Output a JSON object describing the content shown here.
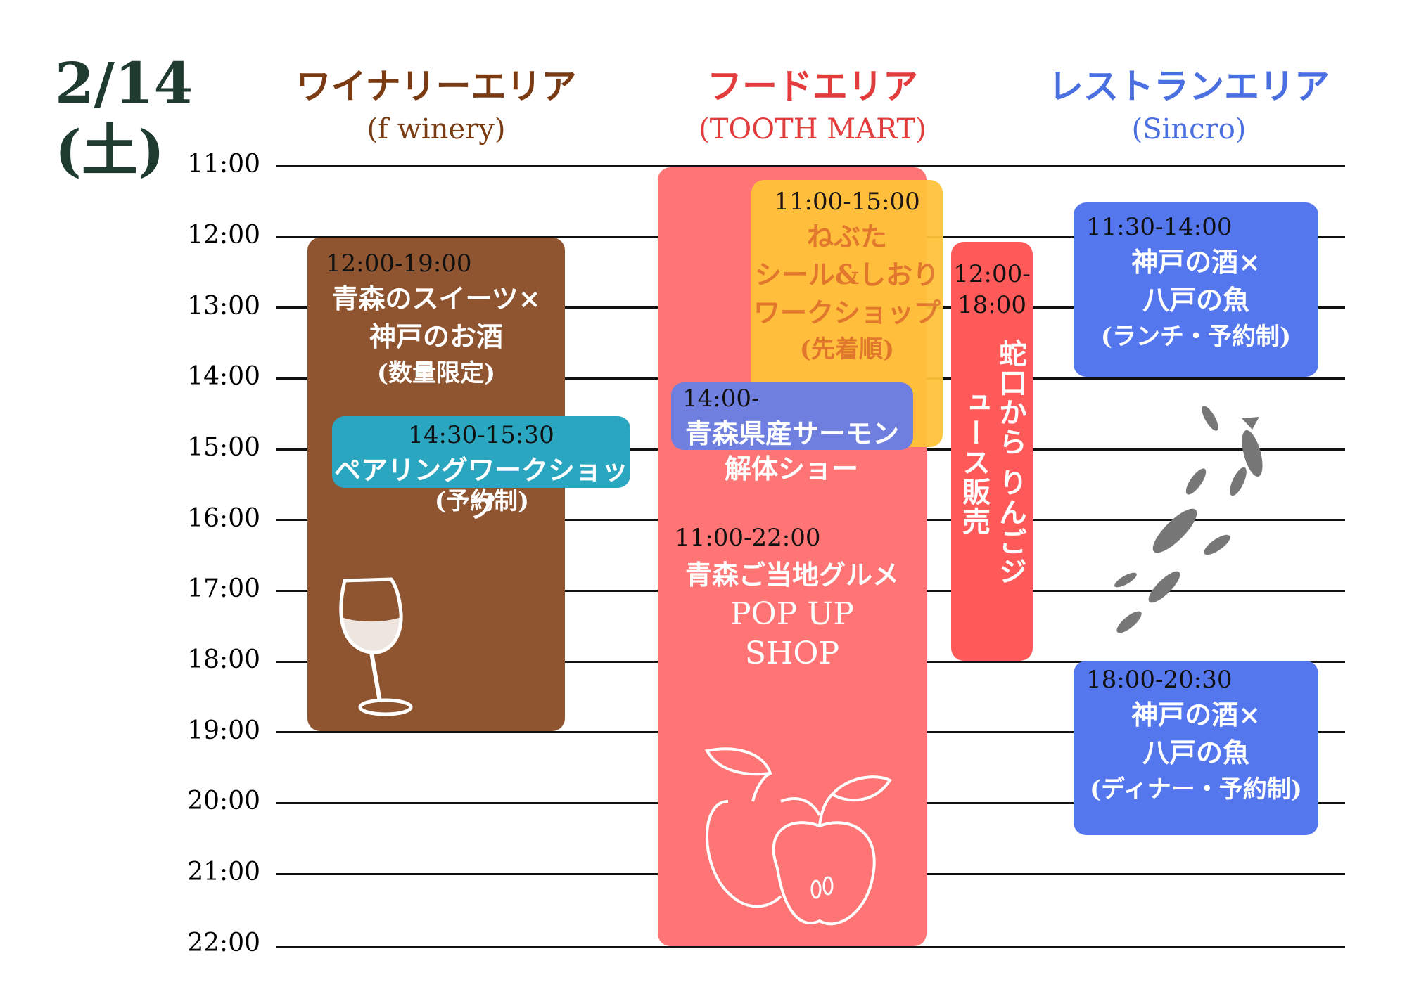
{
  "date": {
    "line1": "2/14",
    "line2": "(土)"
  },
  "areas": [
    {
      "name": "ワイナリーエリア",
      "sub": "(f winery)",
      "color": "#7a3a12"
    },
    {
      "name": "フードエリア",
      "sub": "(TOOTH MART)",
      "color": "#e23c3c"
    },
    {
      "name": "レストランエリア",
      "sub": "(Sincro)",
      "color": "#4a6fe0"
    }
  ],
  "times": [
    "11:00",
    "12:00",
    "13:00",
    "14:00",
    "15:00",
    "16:00",
    "17:00",
    "18:00",
    "19:00",
    "20:00",
    "21:00",
    "22:00"
  ],
  "events": {
    "sweets": {
      "time": "12:00-19:00",
      "line1": "青森のスイーツ×",
      "line2": "神戸のお酒",
      "note": "(数量限定)",
      "color": "#8f5530"
    },
    "pairing": {
      "time": "14:30-15:30",
      "line1": "ペアリングワークショップ",
      "note": "(予約制)",
      "color": "#2aa6c0"
    },
    "nebuta": {
      "time": "11:00-15:00",
      "line1": "ねぶた",
      "line2": "シール&しおり",
      "line3": "ワークショップ",
      "note": "(先着順)",
      "color": "#ffc23a"
    },
    "salmon": {
      "time": "14:00-",
      "line1": "青森県産サーモン",
      "line2": "解体ショー",
      "color": "#6f7fe0"
    },
    "popup": {
      "time": "11:00-22:00",
      "line1": "青森ご当地グルメ",
      "line2": "POP UP",
      "line3": "SHOP",
      "color": "#ff7474"
    },
    "juice": {
      "time1": "12:00-",
      "time2": "18:00",
      "vertical": "蛇口から りんごジュース販売",
      "color": "#ff5a5a"
    },
    "lunch": {
      "time": "11:30-14:00",
      "line1": "神戸の酒×",
      "line2": "八戸の魚",
      "note": "(ランチ・予約制)",
      "color": "#5577ee"
    },
    "dinner": {
      "time": "18:00-20:30",
      "line1": "神戸の酒×",
      "line2": "八戸の魚",
      "note": "(ディナー・予約制)",
      "color": "#5577ee"
    }
  },
  "icons": [
    "wine-glass-icon",
    "apple-icon",
    "fish-school-icon"
  ]
}
